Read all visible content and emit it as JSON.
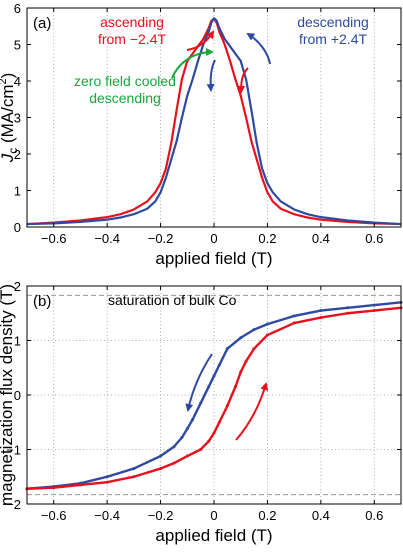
{
  "figure": {
    "background": "#ffffff"
  },
  "colors": {
    "red": "#e8101c",
    "blue": "#2e4aa0",
    "green": "#16a83a",
    "gray": "#888888"
  },
  "chart_data": [
    {
      "type": "line",
      "panel": "(a)",
      "xlabel": "applied field (T)",
      "ylabel": "J_c (MA/cm^2)",
      "ylabel_parts": {
        "main": "J",
        "sub": "c",
        "unit": " (MA/cm",
        "sup": "2",
        "close": ")"
      },
      "xlim": [
        -0.7,
        0.7
      ],
      "ylim": [
        0,
        6
      ],
      "xticks": [
        -0.6,
        -0.4,
        -0.2,
        0,
        0.2,
        0.4,
        0.6
      ],
      "xtick_labels": [
        "−0.6",
        "−0.4",
        "−0.2",
        "0",
        "0.2",
        "0.4",
        "0.6"
      ],
      "yticks": [
        0,
        1,
        2,
        3,
        4,
        5,
        6
      ],
      "ytick_labels": [
        "0",
        "1",
        "2",
        "3",
        "4",
        "5",
        "6"
      ],
      "grid": "vertical dotted",
      "series": [
        {
          "name": "ascending from −2.4T",
          "color": "#e8101c",
          "x": [
            -0.7,
            -0.6,
            -0.5,
            -0.4,
            -0.35,
            -0.3,
            -0.25,
            -0.22,
            -0.2,
            -0.18,
            -0.16,
            -0.14,
            -0.12,
            -0.1,
            -0.08,
            -0.06,
            -0.04,
            -0.02,
            -0.01,
            0.0,
            0.01,
            0.02,
            0.04,
            0.06,
            0.08,
            0.1,
            0.12,
            0.14,
            0.16,
            0.18,
            0.2,
            0.22,
            0.25,
            0.3,
            0.35,
            0.4,
            0.5,
            0.6,
            0.7
          ],
          "y": [
            0.08,
            0.12,
            0.18,
            0.27,
            0.35,
            0.48,
            0.7,
            0.95,
            1.2,
            1.6,
            2.3,
            3.2,
            4.05,
            4.55,
            4.75,
            4.95,
            5.15,
            5.45,
            5.65,
            5.7,
            5.6,
            5.35,
            5.0,
            4.55,
            4.05,
            3.6,
            3.0,
            2.35,
            1.85,
            1.35,
            0.95,
            0.7,
            0.5,
            0.35,
            0.26,
            0.2,
            0.14,
            0.1,
            0.08
          ]
        },
        {
          "name": "descending from +2.4T",
          "color": "#2e4aa0",
          "x": [
            -0.7,
            -0.6,
            -0.5,
            -0.4,
            -0.35,
            -0.3,
            -0.25,
            -0.22,
            -0.2,
            -0.18,
            -0.16,
            -0.14,
            -0.12,
            -0.1,
            -0.08,
            -0.06,
            -0.04,
            -0.02,
            -0.01,
            0.0,
            0.01,
            0.02,
            0.04,
            0.06,
            0.08,
            0.1,
            0.12,
            0.14,
            0.16,
            0.18,
            0.2,
            0.22,
            0.25,
            0.3,
            0.35,
            0.4,
            0.5,
            0.6,
            0.7
          ],
          "y": [
            0.08,
            0.1,
            0.14,
            0.2,
            0.26,
            0.35,
            0.5,
            0.7,
            0.95,
            1.35,
            1.85,
            2.35,
            3.0,
            3.6,
            4.05,
            4.55,
            5.0,
            5.35,
            5.6,
            5.72,
            5.65,
            5.45,
            5.15,
            4.95,
            4.75,
            4.55,
            4.05,
            3.2,
            2.3,
            1.6,
            1.2,
            0.95,
            0.7,
            0.48,
            0.35,
            0.27,
            0.18,
            0.12,
            0.08
          ]
        }
      ],
      "annotations": [
        {
          "lines": [
            "ascending",
            "from −2.4T"
          ],
          "color": "#e8101c"
        },
        {
          "lines": [
            "descending",
            "from +2.4T"
          ],
          "color": "#2e4aa0"
        },
        {
          "lines": [
            "zero field cooled",
            "descending"
          ],
          "color": "#16a83a"
        }
      ]
    },
    {
      "type": "scatter",
      "panel": "(b)",
      "xlabel": "applied field (T)",
      "ylabel": "magnetization flux density (T)",
      "xlim": [
        -0.7,
        0.7
      ],
      "ylim": [
        -2,
        2
      ],
      "xticks": [
        -0.6,
        -0.4,
        -0.2,
        0,
        0.2,
        0.4,
        0.6
      ],
      "xtick_labels": [
        "−0.6",
        "−0.4",
        "−0.2",
        "0",
        "0.2",
        "0.4",
        "0.6"
      ],
      "yticks": [
        -2,
        -1,
        0,
        1,
        2
      ],
      "ytick_labels": [
        "−2",
        "−1",
        "0",
        "1",
        "2"
      ],
      "grid": "dotted",
      "reference_lines": [
        {
          "y": 1.83,
          "label": "saturation of bulk Co"
        },
        {
          "y": -1.83
        }
      ],
      "series": [
        {
          "name": "descending",
          "color": "#2e4aa0",
          "x": [
            0.7,
            0.6,
            0.5,
            0.4,
            0.3,
            0.2,
            0.15,
            0.1,
            0.05,
            0.02,
            0.0,
            -0.02,
            -0.05,
            -0.08,
            -0.1,
            -0.12,
            -0.15,
            -0.2,
            -0.3,
            -0.4,
            -0.5,
            -0.6,
            -0.7
          ],
          "y": [
            1.7,
            1.65,
            1.6,
            1.55,
            1.45,
            1.3,
            1.2,
            1.05,
            0.85,
            0.55,
            0.35,
            0.15,
            -0.15,
            -0.45,
            -0.62,
            -0.78,
            -0.95,
            -1.12,
            -1.35,
            -1.5,
            -1.62,
            -1.68,
            -1.72
          ]
        },
        {
          "name": "ascending",
          "color": "#e8101c",
          "x": [
            -0.7,
            -0.6,
            -0.5,
            -0.4,
            -0.3,
            -0.2,
            -0.15,
            -0.1,
            -0.05,
            -0.02,
            0.0,
            0.02,
            0.05,
            0.08,
            0.1,
            0.12,
            0.15,
            0.2,
            0.3,
            0.4,
            0.5,
            0.6,
            0.7
          ],
          "y": [
            -1.72,
            -1.7,
            -1.65,
            -1.6,
            -1.5,
            -1.35,
            -1.25,
            -1.12,
            -1.0,
            -0.85,
            -0.7,
            -0.5,
            -0.2,
            0.15,
            0.42,
            0.62,
            0.85,
            1.1,
            1.32,
            1.42,
            1.5,
            1.55,
            1.6
          ]
        }
      ]
    }
  ]
}
